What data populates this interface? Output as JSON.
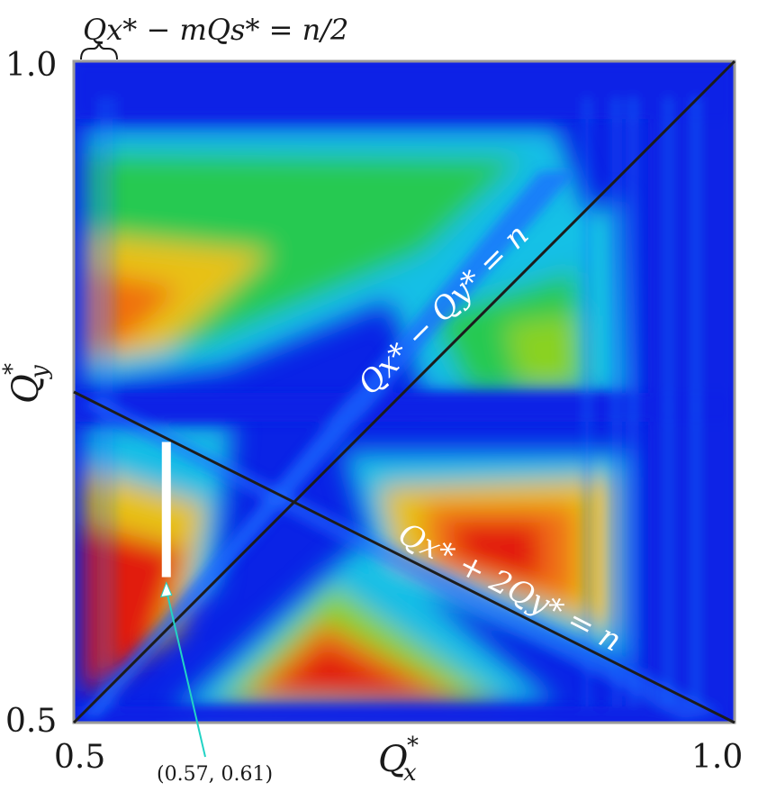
{
  "chart_data": {
    "type": "heatmap",
    "title": "",
    "xlabel": "Q*x",
    "ylabel": "Q*y",
    "xlim": [
      0.5,
      1.0
    ],
    "ylim": [
      0.5,
      1.0
    ],
    "x_tick_labels": [
      "0.5",
      "1.0"
    ],
    "y_tick_labels": [
      "0.5",
      "1.0"
    ],
    "colormap": [
      "#0a23e6",
      "#1e6bff",
      "#19c6e6",
      "#27c94a",
      "#8fd31e",
      "#f2c10f",
      "#f06a12",
      "#e0140f"
    ],
    "lines": [
      {
        "label": "Qx* − Qy* = n",
        "x": [
          0.5,
          1.0
        ],
        "y": [
          0.5,
          1.0
        ]
      },
      {
        "label": "Qx* + 2Qy* = n",
        "x": [
          0.5,
          1.0
        ],
        "y": [
          0.75,
          0.5
        ]
      }
    ],
    "resonance_note": "Qx* − mQs* = n/2",
    "marker": {
      "label": "(0.57, 0.61)",
      "x": 0.57,
      "y": 0.61
    }
  }
}
